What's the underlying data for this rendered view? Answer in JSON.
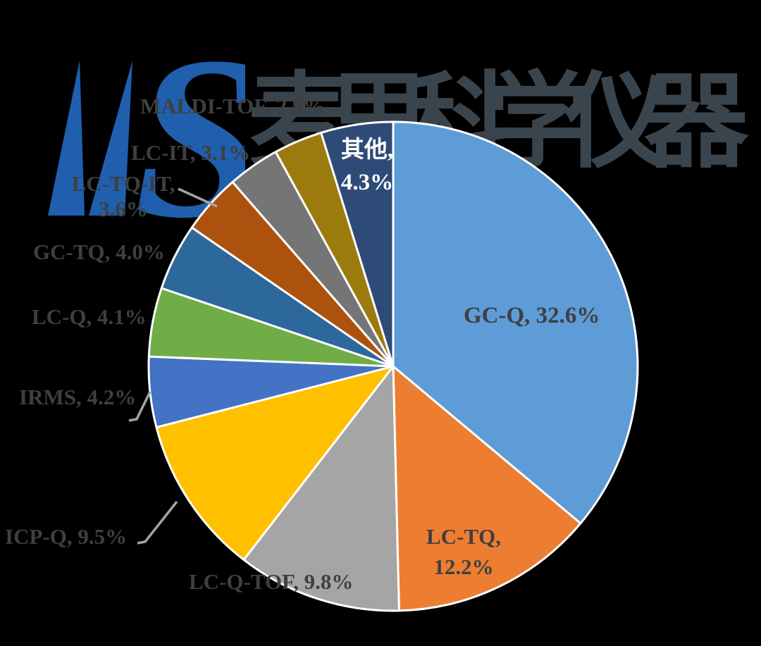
{
  "background_color": "#000000",
  "watermark": {
    "text": "麦思科学仪器",
    "color": "#3A444C"
  },
  "logo": {
    "letters": "MS",
    "color": "#1F5FAE"
  },
  "chart_data": {
    "type": "pie",
    "title": "",
    "unit": "%",
    "start_angle_deg": 0,
    "direction": "clockwise",
    "legend": "none (direct data labels)",
    "label_text_color": "#3F3F3F",
    "leader_line_color": "#A3A3A3",
    "slices": [
      {
        "label": "GC-Q",
        "value": 32.6,
        "display": "GC-Q, 32.6%",
        "color": "#5E9CD8"
      },
      {
        "label": "LC-TQ",
        "value": 12.2,
        "display_line1": "LC-TQ,",
        "display_line2": "12.2%",
        "color": "#ED7D31"
      },
      {
        "label": "LC-Q-TOF",
        "value": 9.8,
        "display": "LC-Q-TOF, 9.8%",
        "color": "#A5A5A5"
      },
      {
        "label": "ICP-Q",
        "value": 9.5,
        "display": "ICP-Q, 9.5%",
        "color": "#FFC000"
      },
      {
        "label": "IRMS",
        "value": 4.2,
        "display": "IRMS, 4.2%",
        "color": "#4472C4"
      },
      {
        "label": "LC-Q",
        "value": 4.1,
        "display": "LC-Q, 4.1%",
        "color": "#70AD47"
      },
      {
        "label": "GC-TQ",
        "value": 4.0,
        "display": "GC-TQ, 4.0%",
        "color": "#2D689C"
      },
      {
        "label": "LC-TQ-IT",
        "value": 3.6,
        "display_line1": "LC-TQ-IT,",
        "display_line2": "3.6%",
        "color": "#AC520E"
      },
      {
        "label": "LC-IT",
        "value": 3.1,
        "display": "LC-IT, 3.1%",
        "color": "#757575"
      },
      {
        "label": "MALDI-TOF",
        "value": 2.9,
        "display": "MALDI-TOF, 2.9%",
        "color": "#9C7B0E"
      },
      {
        "label": "其他",
        "value": 4.3,
        "display_line1": "其他,",
        "display_line2": "4.3%",
        "color": "#2E4B77"
      }
    ]
  }
}
